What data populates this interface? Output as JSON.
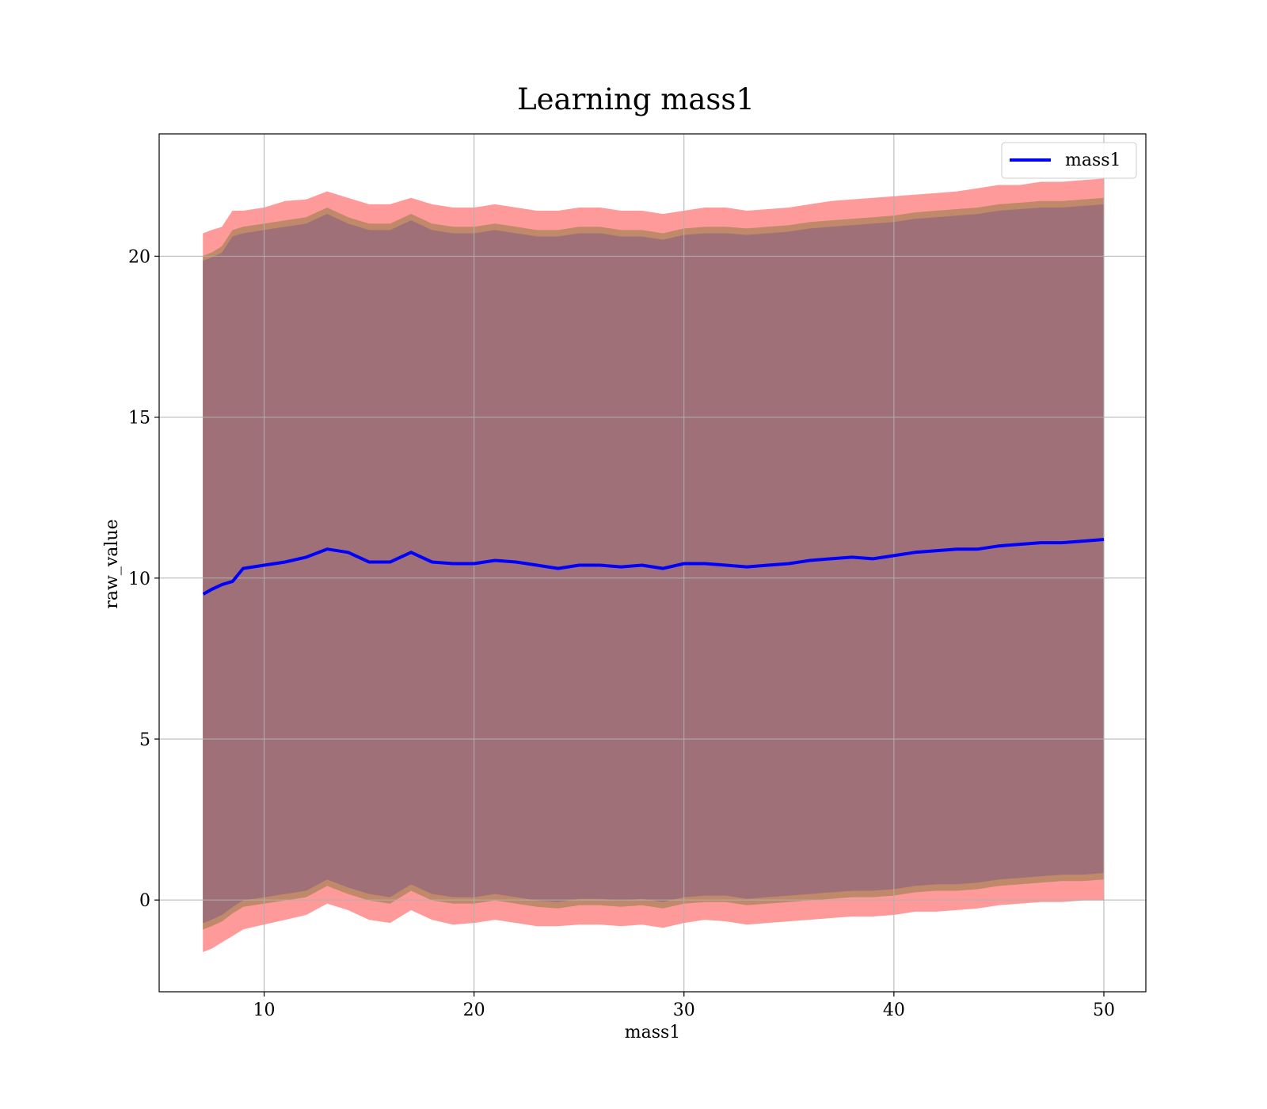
{
  "chart_data": {
    "type": "line",
    "title": "Learning mass1",
    "xlabel": "mass1",
    "ylabel": "raw_value",
    "xlim": [
      5,
      52
    ],
    "ylim": [
      -2.85,
      23.8
    ],
    "xticks": [
      10,
      20,
      30,
      40,
      50
    ],
    "yticks": [
      0,
      5,
      10,
      15,
      20
    ],
    "grid": true,
    "legend": {
      "placement": "top-right",
      "entries": [
        "mass1"
      ]
    },
    "colors": {
      "line": "#0000ff",
      "band_outer": "#ff9a9a",
      "band_middle": "#c08a6a",
      "band_inner": "#a07078",
      "grid": "#b0b0b0"
    },
    "x": [
      7.1,
      7.5,
      8.0,
      8.5,
      9.0,
      10.0,
      11.0,
      12.0,
      13.0,
      14.0,
      15.0,
      16.0,
      17.0,
      18.0,
      19.0,
      20.0,
      21.0,
      22.0,
      23.0,
      24.0,
      25.0,
      26.0,
      27.0,
      28.0,
      29.0,
      30.0,
      31.0,
      32.0,
      33.0,
      34.0,
      35.0,
      36.0,
      37.0,
      38.0,
      39.0,
      40.0,
      41.0,
      42.0,
      43.0,
      44.0,
      45.0,
      46.0,
      47.0,
      48.0,
      49.0,
      50.0
    ],
    "series": [
      {
        "name": "mass1",
        "values": [
          9.5,
          9.65,
          9.8,
          9.9,
          10.3,
          10.4,
          10.5,
          10.65,
          10.9,
          10.8,
          10.5,
          10.5,
          10.8,
          10.5,
          10.45,
          10.45,
          10.55,
          10.5,
          10.4,
          10.3,
          10.4,
          10.4,
          10.35,
          10.4,
          10.3,
          10.45,
          10.45,
          10.4,
          10.35,
          10.4,
          10.45,
          10.55,
          10.6,
          10.65,
          10.6,
          10.7,
          10.8,
          10.85,
          10.9,
          10.9,
          11.0,
          11.05,
          11.1,
          11.1,
          11.15,
          11.2
        ]
      }
    ],
    "band_outer": {
      "upper": [
        20.7,
        20.8,
        20.9,
        21.4,
        21.4,
        21.5,
        21.7,
        21.75,
        22.0,
        21.8,
        21.6,
        21.6,
        21.8,
        21.6,
        21.5,
        21.5,
        21.6,
        21.5,
        21.4,
        21.4,
        21.5,
        21.5,
        21.4,
        21.4,
        21.3,
        21.4,
        21.5,
        21.5,
        21.4,
        21.45,
        21.5,
        21.6,
        21.7,
        21.75,
        21.8,
        21.85,
        21.9,
        21.95,
        22.0,
        22.1,
        22.2,
        22.2,
        22.3,
        22.3,
        22.35,
        22.4
      ],
      "lower": [
        -1.6,
        -1.5,
        -1.3,
        -1.1,
        -0.9,
        -0.75,
        -0.6,
        -0.45,
        -0.1,
        -0.3,
        -0.6,
        -0.7,
        -0.3,
        -0.6,
        -0.75,
        -0.7,
        -0.6,
        -0.7,
        -0.8,
        -0.8,
        -0.75,
        -0.75,
        -0.8,
        -0.75,
        -0.85,
        -0.7,
        -0.6,
        -0.65,
        -0.75,
        -0.7,
        -0.65,
        -0.6,
        -0.55,
        -0.5,
        -0.5,
        -0.45,
        -0.35,
        -0.35,
        -0.3,
        -0.25,
        -0.15,
        -0.1,
        -0.05,
        -0.05,
        0.0,
        0.0
      ]
    },
    "band_middle": {
      "upper": [
        20.0,
        20.1,
        20.3,
        20.8,
        20.9,
        21.0,
        21.1,
        21.2,
        21.5,
        21.2,
        21.0,
        21.0,
        21.3,
        21.0,
        20.9,
        20.9,
        21.0,
        20.9,
        20.8,
        20.8,
        20.9,
        20.9,
        20.8,
        20.8,
        20.7,
        20.85,
        20.9,
        20.9,
        20.85,
        20.9,
        20.95,
        21.05,
        21.1,
        21.15,
        21.2,
        21.25,
        21.35,
        21.4,
        21.45,
        21.5,
        21.6,
        21.65,
        21.7,
        21.7,
        21.75,
        21.8
      ],
      "lower": [
        -0.9,
        -0.8,
        -0.65,
        -0.4,
        -0.2,
        -0.1,
        0.0,
        0.1,
        0.45,
        0.2,
        0.0,
        -0.1,
        0.3,
        0.0,
        -0.1,
        -0.1,
        0.0,
        -0.1,
        -0.2,
        -0.25,
        -0.15,
        -0.15,
        -0.2,
        -0.15,
        -0.25,
        -0.1,
        -0.05,
        -0.05,
        -0.15,
        -0.1,
        -0.05,
        0.0,
        0.05,
        0.1,
        0.1,
        0.15,
        0.25,
        0.3,
        0.3,
        0.35,
        0.45,
        0.5,
        0.55,
        0.6,
        0.6,
        0.65
      ]
    },
    "band_inner": {
      "upper": [
        19.85,
        19.95,
        20.1,
        20.6,
        20.7,
        20.8,
        20.9,
        21.0,
        21.3,
        21.0,
        20.8,
        20.8,
        21.1,
        20.8,
        20.7,
        20.7,
        20.8,
        20.7,
        20.6,
        20.6,
        20.7,
        20.7,
        20.6,
        20.6,
        20.5,
        20.65,
        20.7,
        20.7,
        20.65,
        20.7,
        20.75,
        20.85,
        20.9,
        20.95,
        21.0,
        21.05,
        21.15,
        21.2,
        21.25,
        21.3,
        21.4,
        21.45,
        21.5,
        21.5,
        21.55,
        21.6
      ],
      "lower": [
        -0.7,
        -0.6,
        -0.45,
        -0.2,
        0.0,
        0.1,
        0.2,
        0.3,
        0.65,
        0.4,
        0.2,
        0.1,
        0.5,
        0.2,
        0.1,
        0.1,
        0.2,
        0.1,
        0.0,
        -0.05,
        0.05,
        0.05,
        0.0,
        0.05,
        -0.05,
        0.1,
        0.15,
        0.15,
        0.05,
        0.1,
        0.15,
        0.2,
        0.25,
        0.3,
        0.3,
        0.35,
        0.45,
        0.5,
        0.5,
        0.55,
        0.65,
        0.7,
        0.75,
        0.8,
        0.8,
        0.85
      ]
    }
  }
}
